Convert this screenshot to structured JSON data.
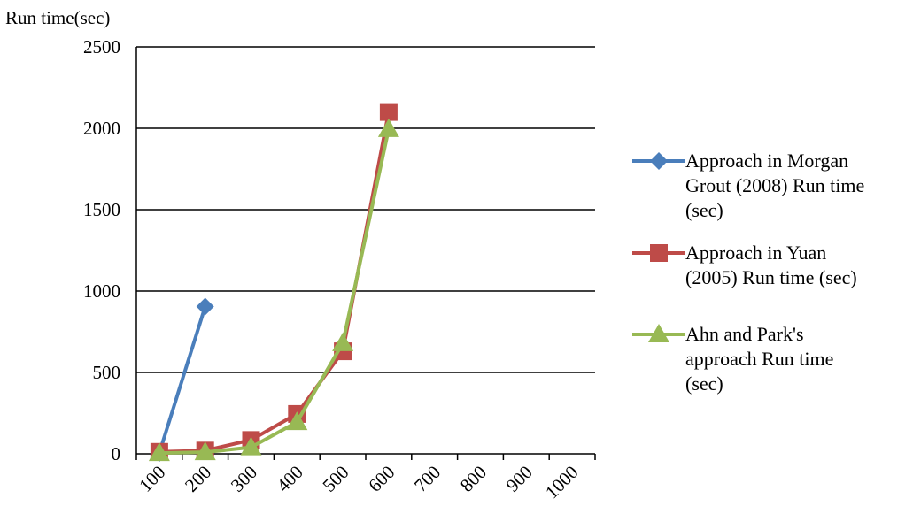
{
  "chart_data": {
    "type": "line",
    "ylabel": "Run time(sec)",
    "categories": [
      "100",
      "200",
      "300",
      "400",
      "500",
      "600",
      "700",
      "800",
      "900",
      "1000"
    ],
    "ylim": [
      0,
      2500
    ],
    "yticks": [
      0,
      500,
      1000,
      1500,
      2000,
      2500
    ],
    "grid": true,
    "legend_position": "right",
    "series": [
      {
        "name": "Approach in Morgan Grout (2008) Run time (sec)",
        "name_lines": [
          "Approach in Morgan",
          "Grout (2008) Run time",
          "(sec)"
        ],
        "color": "#4a7ebb",
        "marker": "diamond",
        "values": [
          5,
          905,
          null,
          null,
          null,
          null,
          null,
          null,
          null,
          null
        ]
      },
      {
        "name": "Approach in Yuan (2005) Run time (sec)",
        "name_lines": [
          "Approach in Yuan",
          "(2005) Run time (sec)"
        ],
        "color": "#be4b48",
        "marker": "square",
        "values": [
          12,
          20,
          85,
          245,
          630,
          2100,
          null,
          null,
          null,
          null
        ]
      },
      {
        "name": "Ahn and Park's approach Run time (sec)",
        "name_lines": [
          "Ahn and Park's",
          "approach Run time",
          "(sec)"
        ],
        "color": "#98b954",
        "marker": "triangle",
        "values": [
          5,
          10,
          40,
          195,
          680,
          1995,
          null,
          null,
          null,
          null
        ]
      }
    ]
  }
}
